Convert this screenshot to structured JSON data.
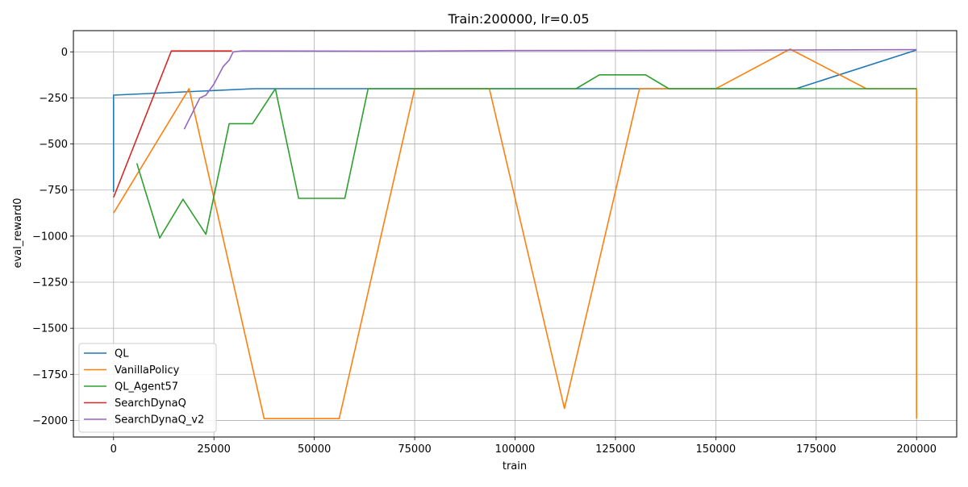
{
  "chart_data": {
    "type": "line",
    "title": "Train:200000, lr=0.05",
    "xlabel": "train",
    "ylabel": "eval_reward0",
    "xlim": [
      -10000,
      210000
    ],
    "ylim": [
      -2090,
      115
    ],
    "x_ticks": [
      0,
      25000,
      50000,
      75000,
      100000,
      125000,
      150000,
      175000,
      200000
    ],
    "y_ticks": [
      0,
      -250,
      -500,
      -750,
      -1000,
      -1250,
      -1500,
      -1750,
      -2000
    ],
    "x_tick_labels": [
      "0",
      "25000",
      "50000",
      "75000",
      "100000",
      "125000",
      "150000",
      "175000",
      "200000"
    ],
    "y_tick_labels": [
      "0",
      "−250",
      "−500",
      "−750",
      "−1000",
      "−1250",
      "−1500",
      "−1750",
      "−2000"
    ],
    "grid": true,
    "legend_position": "lower-left",
    "series": [
      {
        "name": "QL",
        "color": "#1f77b4",
        "points": [
          [
            0,
            -760
          ],
          [
            0,
            -235
          ],
          [
            35000,
            -200
          ],
          [
            170000,
            -200
          ],
          [
            200000,
            10
          ]
        ]
      },
      {
        "name": "VanillaPolicy",
        "color": "#ff7f0e",
        "points": [
          [
            0,
            -875
          ],
          [
            18800,
            -200
          ],
          [
            37500,
            -1990
          ],
          [
            56200,
            -1990
          ],
          [
            75000,
            -200
          ],
          [
            93600,
            -200
          ],
          [
            112300,
            -1935
          ],
          [
            131000,
            -200
          ],
          [
            150000,
            -200
          ],
          [
            168500,
            15
          ],
          [
            187500,
            -200
          ],
          [
            200000,
            -200
          ],
          [
            200000,
            -1990
          ]
        ]
      },
      {
        "name": "QL_Agent57",
        "color": "#2ca02c",
        "points": [
          [
            5800,
            -605
          ],
          [
            11500,
            -1010
          ],
          [
            17300,
            -800
          ],
          [
            23000,
            -990
          ],
          [
            28800,
            -390
          ],
          [
            34600,
            -390
          ],
          [
            40300,
            -200
          ],
          [
            46100,
            -795
          ],
          [
            57600,
            -795
          ],
          [
            63400,
            -200
          ],
          [
            115200,
            -200
          ],
          [
            121000,
            -125
          ],
          [
            132500,
            -125
          ],
          [
            138300,
            -200
          ],
          [
            200000,
            -200
          ]
        ]
      },
      {
        "name": "SearchDynaQ",
        "color": "#d62728",
        "points": [
          [
            0,
            -790
          ],
          [
            14400,
            5
          ],
          [
            29500,
            5
          ]
        ]
      },
      {
        "name": "SearchDynaQ_v2",
        "color": "#9467bd",
        "points": [
          [
            17600,
            -420
          ],
          [
            21500,
            -250
          ],
          [
            23000,
            -235
          ],
          [
            25000,
            -175
          ],
          [
            27300,
            -80
          ],
          [
            28800,
            -45
          ],
          [
            29800,
            0
          ],
          [
            32000,
            5
          ],
          [
            70000,
            3
          ],
          [
            100000,
            7
          ],
          [
            150000,
            8
          ],
          [
            200000,
            12
          ]
        ]
      }
    ]
  }
}
